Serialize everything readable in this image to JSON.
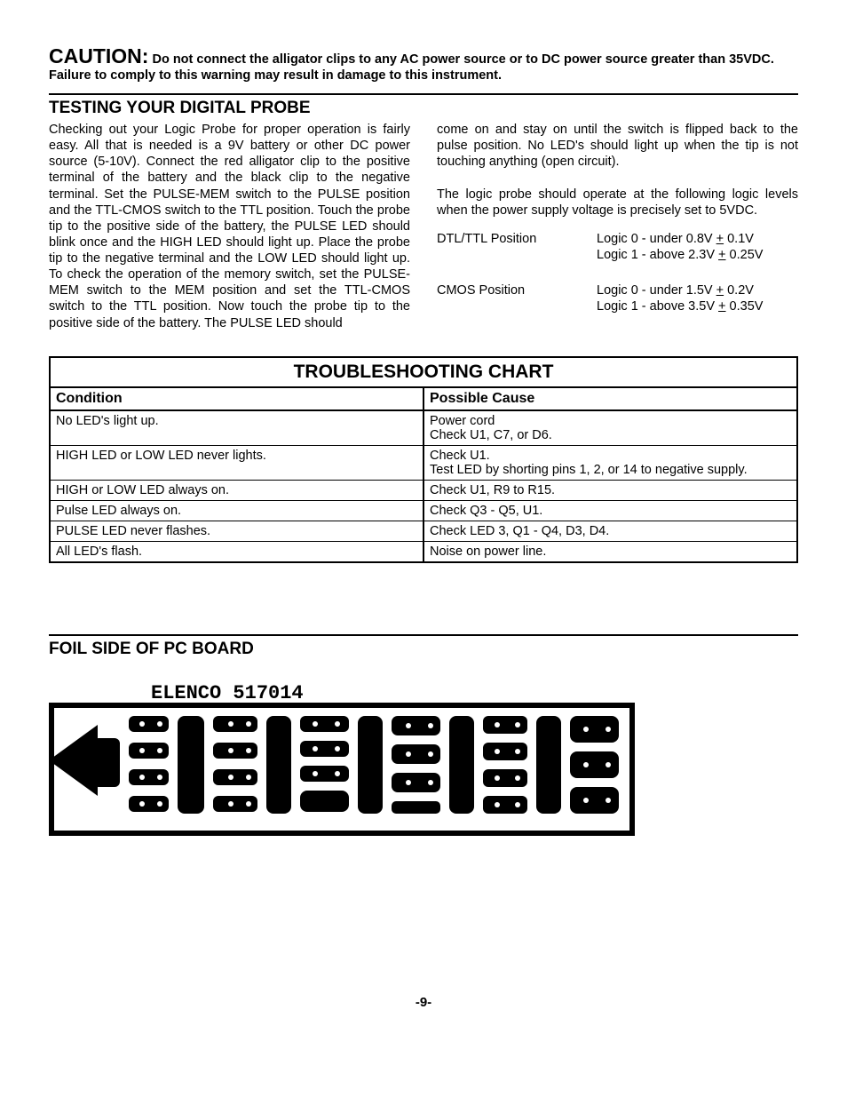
{
  "caution": {
    "label": "CAUTION:",
    "text": "Do not connect the alligator clips to any AC power source or to DC power source greater than 35VDC.  Failure to comply to this warning may result in damage to this instrument."
  },
  "testing": {
    "heading": "TESTING YOUR DIGITAL PROBE",
    "col1": "Checking out your Logic Probe for proper operation is fairly easy.  All that is needed is a 9V battery or other DC power source (5-10V). Connect the red alligator clip to the positive terminal of the battery and the black clip to the negative terminal. Set the PULSE-MEM switch to the PULSE position and the TTL-CMOS switch to the TTL position. Touch the probe tip to the positive side of the battery, the PULSE LED should blink once and the HIGH LED should light up. Place the probe tip to the negative terminal and the LOW LED should light up. To check the operation of the memory switch, set the PULSE-MEM switch to the MEM position and set the TTL-CMOS switch to the TTL position. Now touch the probe tip to the positive side of the battery. The PULSE LED should",
    "col2_p1": "come on and stay on until the switch is flipped back to the pulse position. No LED's should light up when the tip is not touching anything (open circuit).",
    "col2_p2": "The logic probe should operate at the following logic levels when the power supply voltage is precisely set to 5VDC.",
    "logic": [
      {
        "position": "DTL/TTL Position",
        "line1_pre": "Logic 0 - under 0.8V ",
        "line1_pm": "+",
        "line1_post": " 0.1V",
        "line2_pre": "Logic 1 - above 2.3V ",
        "line2_pm": "+",
        "line2_post": " 0.25V"
      },
      {
        "position": "CMOS Position",
        "line1_pre": "Logic 0 - under 1.5V ",
        "line1_pm": "+",
        "line1_post": " 0.2V",
        "line2_pre": "Logic 1 - above 3.5V ",
        "line2_pm": "+",
        "line2_post": " 0.35V"
      }
    ]
  },
  "trouble": {
    "title": "TROUBLESHOOTING CHART",
    "col_condition": "Condition",
    "col_cause": "Possible Cause",
    "rows": [
      {
        "condition": "No LED's light up.",
        "cause": "Power cord\nCheck U1, C7, or D6."
      },
      {
        "condition": "HIGH LED or LOW LED never lights.",
        "cause": "Check U1.\nTest LED by shorting pins 1, 2, or 14 to negative supply."
      },
      {
        "condition": "HIGH or LOW LED always on.",
        "cause": "Check U1, R9 to R15."
      },
      {
        "condition": "Pulse LED always on.",
        "cause": "Check Q3 - Q5, U1."
      },
      {
        "condition": "PULSE LED never flashes.",
        "cause": "Check LED 3, Q1 - Q4, D3, D4."
      },
      {
        "condition": "All LED's flash.",
        "cause": "Noise on power line."
      }
    ]
  },
  "foil": {
    "heading": "FOIL SIDE OF PC BOARD",
    "board_label": "ELENCO 517014",
    "pcb_colors": {
      "fill": "#000000",
      "bg": "#ffffff"
    }
  },
  "page_number": "-9-"
}
